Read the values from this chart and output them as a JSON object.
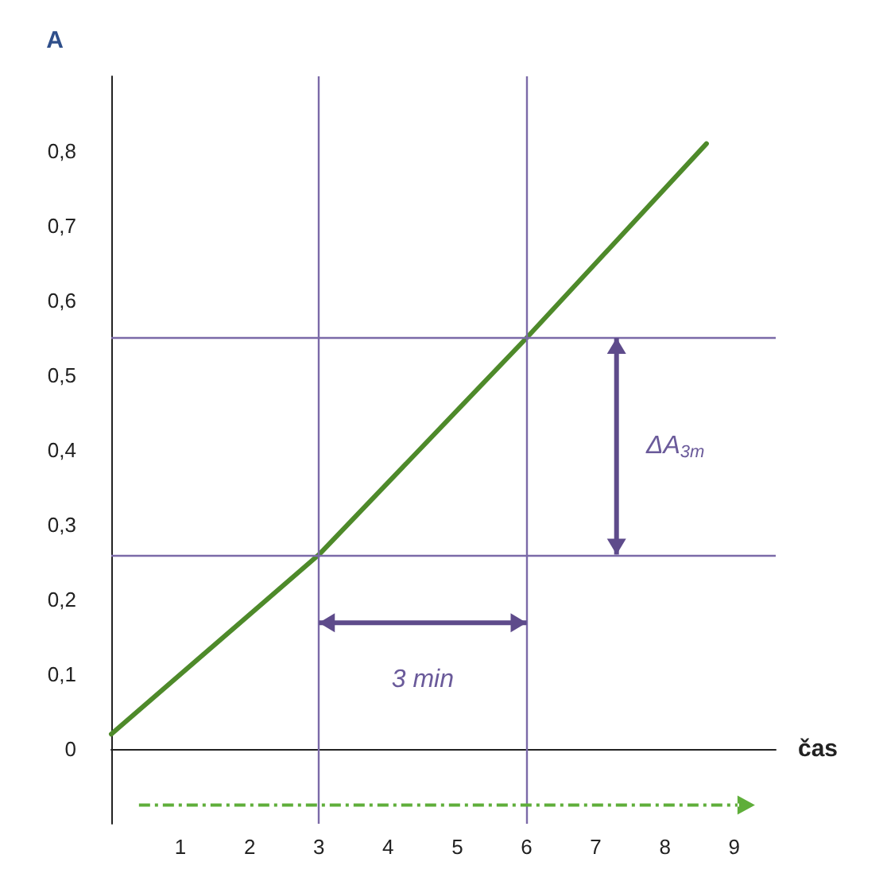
{
  "chart_data": {
    "type": "line",
    "xlabel": "čas",
    "ylabel": "A",
    "x": [
      0,
      3,
      6,
      8.6
    ],
    "series": [
      {
        "color": "#4e8a2a",
        "values": [
          0.02,
          0.26,
          0.55,
          0.81
        ]
      }
    ],
    "xlim": [
      0,
      9.6
    ],
    "ylim": [
      -0.1,
      0.9
    ],
    "xticks": [
      1,
      2,
      3,
      4,
      5,
      6,
      7,
      8,
      9
    ],
    "yticks": [
      {
        "value": 0,
        "label": "0"
      },
      {
        "value": 0.1,
        "label": "0,1"
      },
      {
        "value": 0.2,
        "label": "0,2"
      },
      {
        "value": 0.3,
        "label": "0,3"
      },
      {
        "value": 0.4,
        "label": "0,4"
      },
      {
        "value": 0.5,
        "label": "0,5"
      },
      {
        "value": 0.6,
        "label": "0,6"
      },
      {
        "value": 0.7,
        "label": "0,7"
      },
      {
        "value": 0.8,
        "label": "0,8"
      }
    ],
    "ref_lines": [
      {
        "axis": "x",
        "value": 3,
        "color": "#7b6aa8"
      },
      {
        "axis": "x",
        "value": 6,
        "color": "#7b6aa8"
      },
      {
        "axis": "y",
        "value": 0.26,
        "color": "#7b6aa8"
      },
      {
        "axis": "y",
        "value": 0.55,
        "color": "#7b6aa8"
      }
    ],
    "annotations": [
      "3 min",
      "ΔA$_{3m}$"
    ],
    "marker": "none",
    "line_style": "solid"
  }
}
